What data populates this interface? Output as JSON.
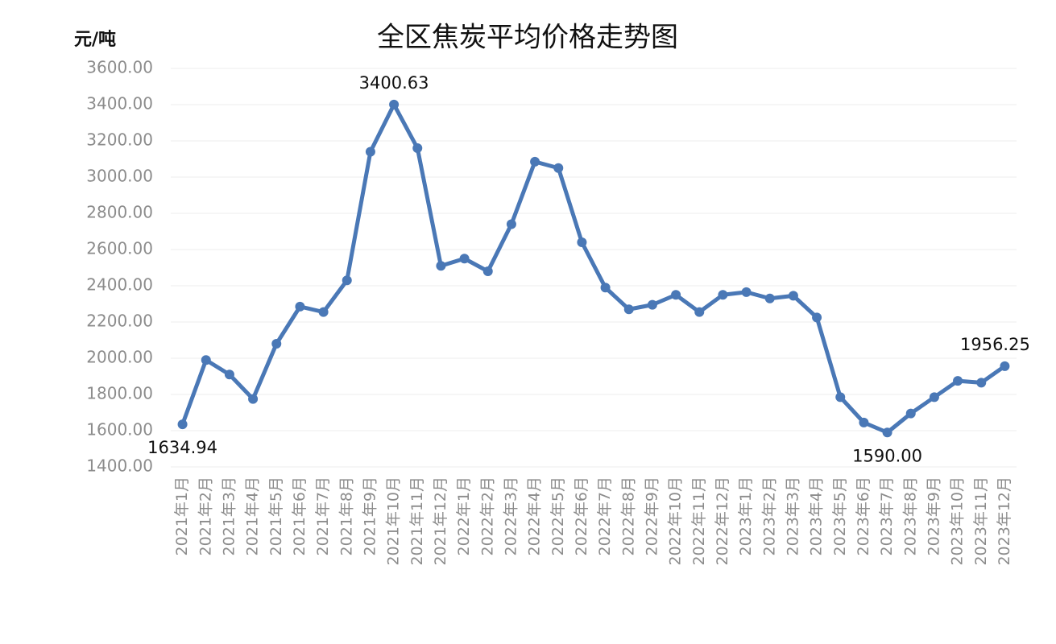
{
  "chart_data": {
    "type": "line",
    "title": "全区焦炭平均价格走势图",
    "y_label": "元/吨",
    "categories": [
      "2021年1月",
      "2021年2月",
      "2021年3月",
      "2021年4月",
      "2021年5月",
      "2021年6月",
      "2021年7月",
      "2021年8月",
      "2021年9月",
      "2021年10月",
      "2021年11月",
      "2021年12月",
      "2022年1月",
      "2022年2月",
      "2022年3月",
      "2022年4月",
      "2022年5月",
      "2022年6月",
      "2022年7月",
      "2022年8月",
      "2022年9月",
      "2022年10月",
      "2022年11月",
      "2022年12月",
      "2023年1月",
      "2023年2月",
      "2023年3月",
      "2023年4月",
      "2023年5月",
      "2023年6月",
      "2023年7月",
      "2023年8月",
      "2023年9月",
      "2023年10月",
      "2023年11月",
      "2023年12月"
    ],
    "values": [
      1634.94,
      1990,
      1910,
      1775,
      2080,
      2285,
      2255,
      2430,
      3140,
      3400.63,
      3160,
      2510,
      2550,
      2480,
      2740,
      3085,
      3050,
      2640,
      2390,
      2270,
      2295,
      2350,
      2255,
      2350,
      2365,
      2330,
      2345,
      2225,
      1785,
      1645,
      1590,
      1695,
      1785,
      1875,
      1865,
      1956.25
    ],
    "value_labels": [
      "1634.94",
      null,
      null,
      null,
      null,
      null,
      null,
      null,
      null,
      "3400.63",
      null,
      null,
      null,
      null,
      null,
      null,
      null,
      null,
      null,
      null,
      null,
      null,
      null,
      null,
      null,
      null,
      null,
      null,
      null,
      null,
      "1590.00",
      null,
      null,
      null,
      null,
      "1956.25"
    ],
    "color": "#4a78b6",
    "ylim": [
      1400,
      3600
    ],
    "yticks": [
      {
        "value": 1400,
        "label": "1400.00"
      },
      {
        "value": 1600,
        "label": "1600.00"
      },
      {
        "value": 1800,
        "label": "1800.00"
      },
      {
        "value": 2000,
        "label": "2000.00"
      },
      {
        "value": 2200,
        "label": "2200.00"
      },
      {
        "value": 2400,
        "label": "2400.00"
      },
      {
        "value": 2600,
        "label": "2600.00"
      },
      {
        "value": 2800,
        "label": "2800.00"
      },
      {
        "value": 3000,
        "label": "3000.00"
      },
      {
        "value": 3200,
        "label": "3200.00"
      },
      {
        "value": 3400,
        "label": "3400.00"
      },
      {
        "value": 3600,
        "label": "3600.00"
      }
    ],
    "grid": true
  }
}
